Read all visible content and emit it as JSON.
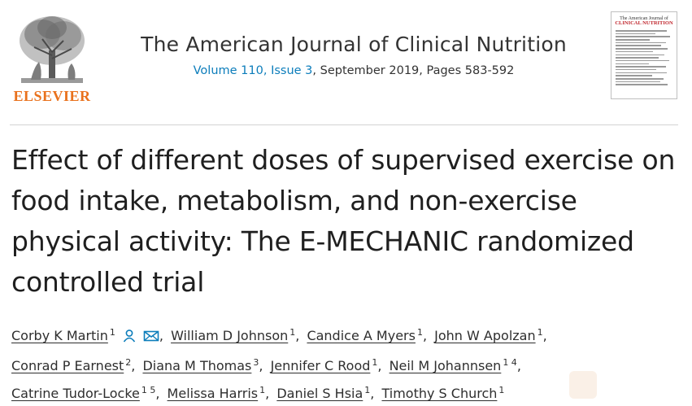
{
  "publisher": {
    "name": "ELSEVIER"
  },
  "journal": {
    "title": "The American Journal of Clinical Nutrition",
    "volume_issue": "Volume 110, Issue 3",
    "issue_rest": ", September 2019, Pages 583-592"
  },
  "cover": {
    "top_text": "The American Journal of",
    "title_text": "CLINICAL NUTRITION"
  },
  "article": {
    "title": "Effect of different doses of supervised exercise on food intake, metabolism, and non-exercise physical activity: The E-MECHANIC randomized controlled trial"
  },
  "authors": [
    {
      "name": "Corby K Martin",
      "aff": "1"
    },
    {
      "name": "William D Johnson",
      "aff": "1"
    },
    {
      "name": "Candice A Myers",
      "aff": "1"
    },
    {
      "name": "John W Apolzan",
      "aff": "1"
    },
    {
      "name": "Conrad P Earnest",
      "aff": "2"
    },
    {
      "name": "Diana M Thomas",
      "aff": "3"
    },
    {
      "name": "Jennifer C Rood",
      "aff": "1"
    },
    {
      "name": "Neil M Johannsen",
      "aff": "1 4"
    },
    {
      "name": "Catrine Tudor-Locke",
      "aff": "1 5"
    },
    {
      "name": "Melissa Harris",
      "aff": "1"
    },
    {
      "name": "Daniel S Hsia",
      "aff": "1"
    },
    {
      "name": "Timothy S Church",
      "aff": "1"
    }
  ],
  "icons": {
    "person": "person-icon",
    "email": "email-icon"
  },
  "colors": {
    "link": "#0c7dbb",
    "elsevier_orange": "#e9711c",
    "text": "#1f1f1f"
  }
}
